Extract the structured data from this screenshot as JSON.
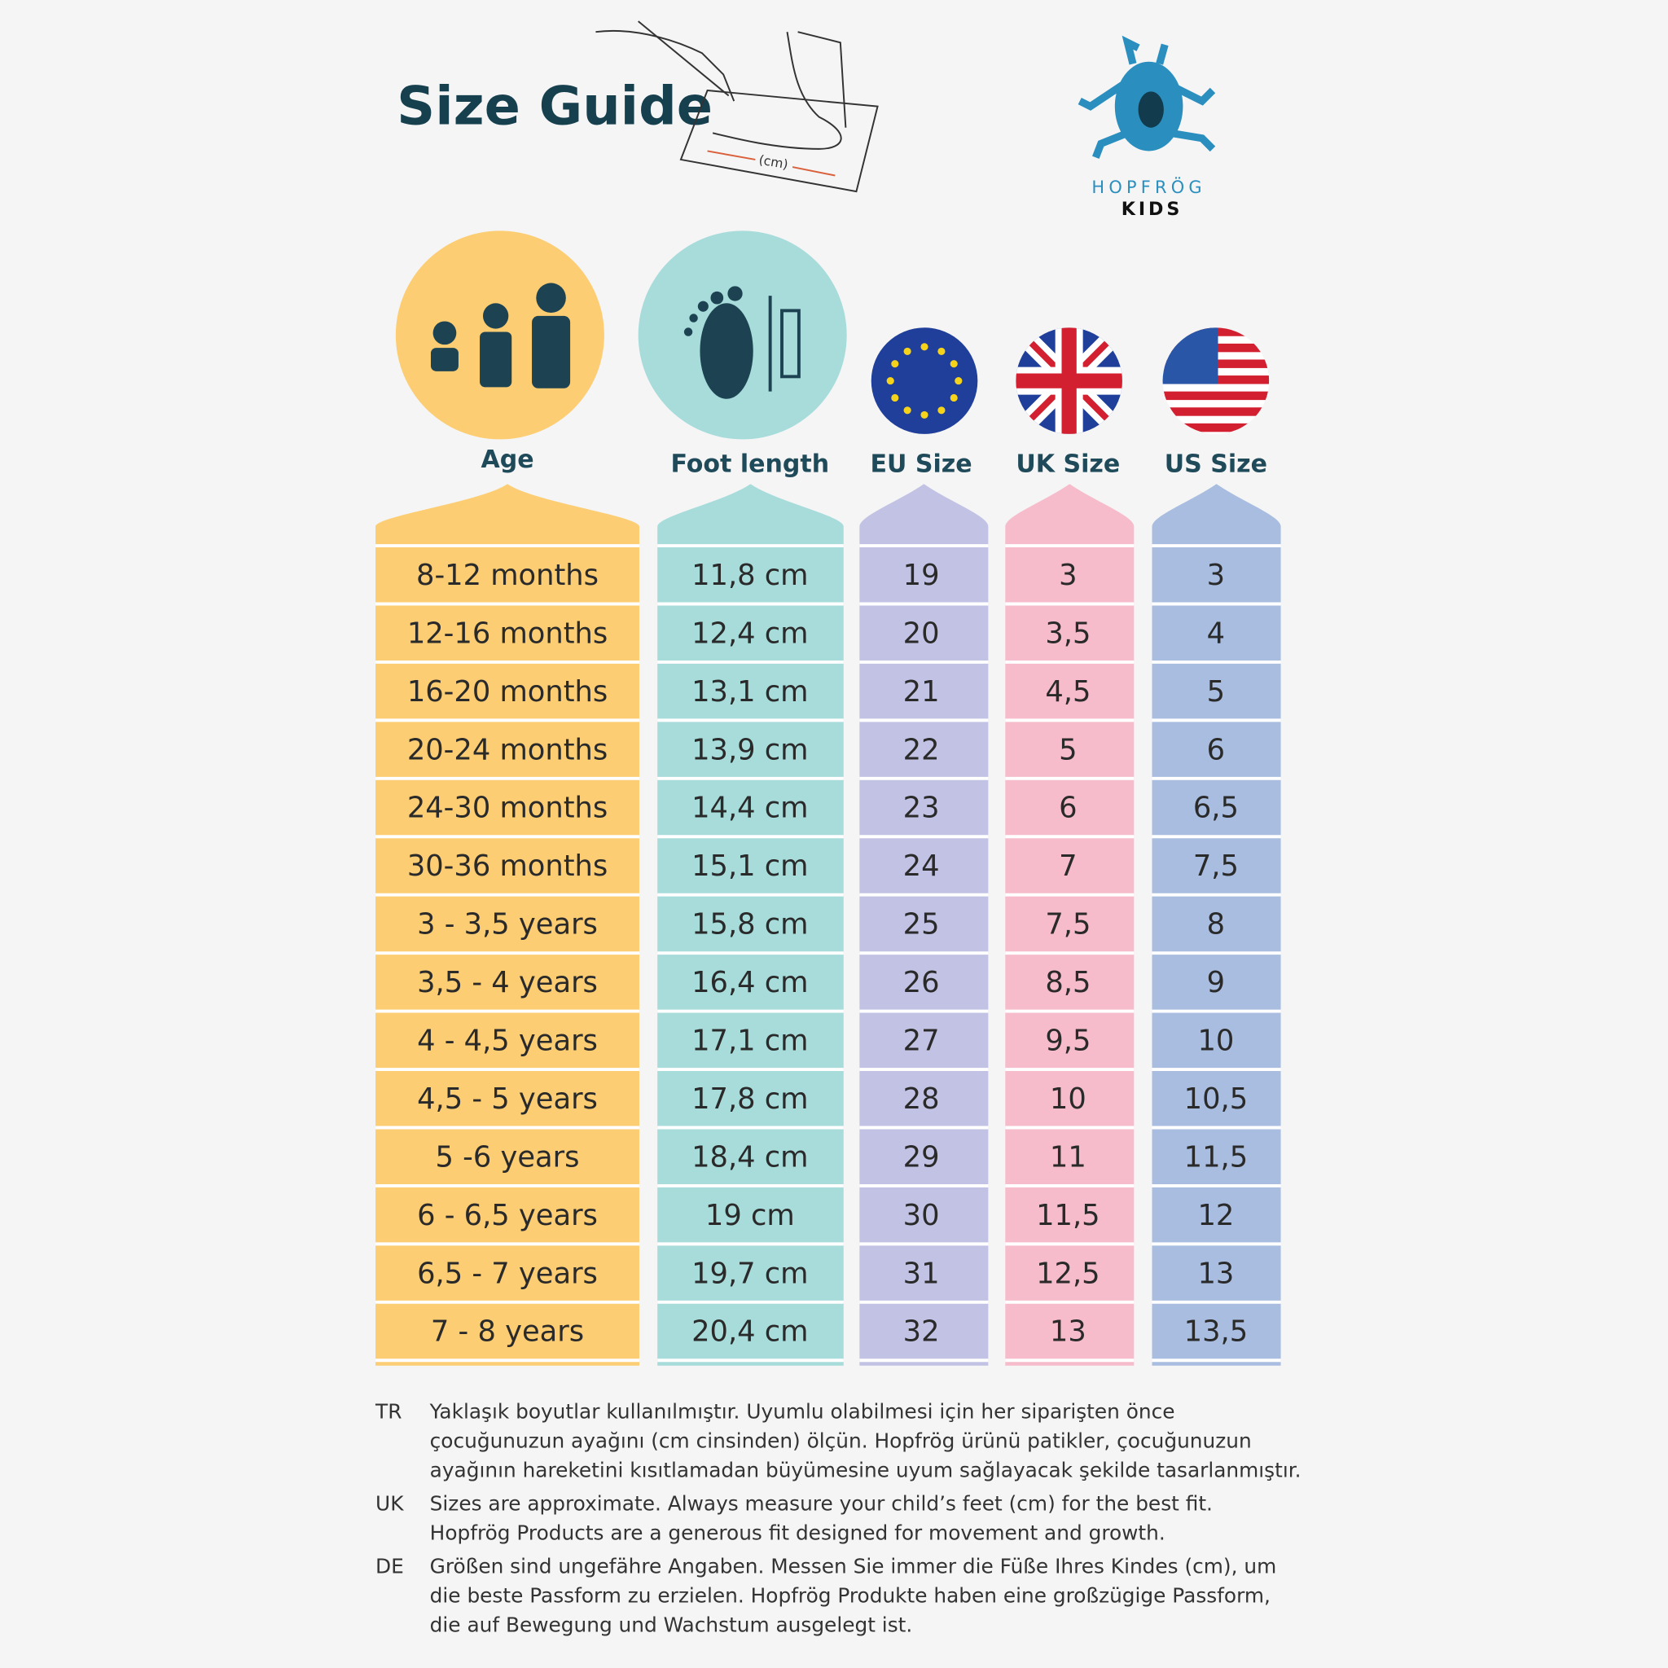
{
  "header": {
    "title": "Size Guide",
    "measure_label": "(cm)",
    "brand": "HOPFRÖG",
    "brand_sub": "KIDS"
  },
  "table": {
    "columns": [
      "Age",
      "Foot length",
      "EU Size",
      "UK Size",
      "US Size"
    ],
    "rows": [
      [
        "8-12 months",
        "11,8 cm",
        "19",
        "3",
        "3"
      ],
      [
        "12-16 months",
        "12,4 cm",
        "20",
        "3,5",
        "4"
      ],
      [
        "16-20 months",
        "13,1 cm",
        "21",
        "4,5",
        "5"
      ],
      [
        "20-24 months",
        "13,9 cm",
        "22",
        "5",
        "6"
      ],
      [
        "24-30 months",
        "14,4 cm",
        "23",
        "6",
        "6,5"
      ],
      [
        "30-36 months",
        "15,1 cm",
        "24",
        "7",
        "7,5"
      ],
      [
        "3 - 3,5 years",
        "15,8 cm",
        "25",
        "7,5",
        "8"
      ],
      [
        "3,5 - 4 years",
        "16,4 cm",
        "26",
        "8,5",
        "9"
      ],
      [
        "4 - 4,5 years",
        "17,1 cm",
        "27",
        "9,5",
        "10"
      ],
      [
        "4,5 - 5 years",
        "17,8 cm",
        "28",
        "10",
        "10,5"
      ],
      [
        "5 -6 years",
        "18,4 cm",
        "29",
        "11",
        "11,5"
      ],
      [
        "6 - 6,5 years",
        "19 cm",
        "30",
        "11,5",
        "12"
      ],
      [
        "6,5 - 7 years",
        "19,7 cm",
        "31",
        "12,5",
        "13"
      ],
      [
        "7 - 8 years",
        "20,4 cm",
        "32",
        "13",
        "13,5"
      ]
    ]
  },
  "notes": [
    {
      "lang": "TR",
      "lines": [
        "Yaklaşık boyutlar kullanılmıştır. Uyumlu olabilmesi için her siparişten önce",
        "çocuğunuzun ayağını (cm cinsinden) ölçün. Hopfrög ürünü patikler, çocuğunuzun",
        "ayağının hareketini kısıtlamadan büyümesine uyum sağlayacak şekilde tasarlanmıştır."
      ]
    },
    {
      "lang": "UK",
      "lines": [
        "Sizes are approximate. Always measure your child’s feet (cm) for the best fit.",
        "Hopfrög Products are a generous fit designed for movement and growth."
      ]
    },
    {
      "lang": "DE",
      "lines": [
        "Größen sind ungefähre Angaben. Messen Sie immer die Füße Ihres Kindes (cm), um",
        "die beste Passform zu erzielen. Hopfrög Produkte haben eine großzügige Passform,",
        "die auf Bewegung und Wachstum ausgelegt ist."
      ]
    }
  ]
}
